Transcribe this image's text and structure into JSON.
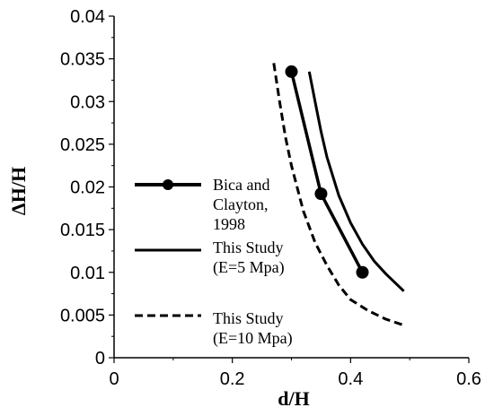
{
  "chart_data": {
    "type": "line",
    "xlabel": "d/H",
    "ylabel": "ΔH/H",
    "xlim": [
      0,
      0.6
    ],
    "ylim": [
      0,
      0.04
    ],
    "x_ticks": [
      "0",
      "0.2",
      "0.4",
      "0.6"
    ],
    "y_ticks": [
      "0",
      "0.005",
      "0.01",
      "0.015",
      "0.02",
      "0.025",
      "0.03",
      "0.035",
      "0.04"
    ],
    "grid": false,
    "legend_position": "left-inside",
    "series": [
      {
        "name_lines": [
          "Bica and",
          "Clayton,",
          "1998"
        ],
        "style": "solid-thick-markers",
        "color": "#000000",
        "points": [
          [
            0.3,
            0.0335
          ],
          [
            0.35,
            0.0192
          ],
          [
            0.42,
            0.01
          ]
        ]
      },
      {
        "name_lines": [
          "This Study",
          "(E=5 Mpa)"
        ],
        "style": "solid",
        "color": "#000000",
        "points": [
          [
            0.33,
            0.0335
          ],
          [
            0.34,
            0.03
          ],
          [
            0.35,
            0.0265
          ],
          [
            0.36,
            0.0235
          ],
          [
            0.38,
            0.019
          ],
          [
            0.4,
            0.0158
          ],
          [
            0.42,
            0.0133
          ],
          [
            0.44,
            0.0113
          ],
          [
            0.46,
            0.0098
          ],
          [
            0.49,
            0.0078
          ]
        ]
      },
      {
        "name_lines": [
          "This Study",
          "(E=10 Mpa)"
        ],
        "style": "dashed",
        "color": "#000000",
        "points": [
          [
            0.27,
            0.0345
          ],
          [
            0.28,
            0.03
          ],
          [
            0.29,
            0.0258
          ],
          [
            0.3,
            0.0225
          ],
          [
            0.32,
            0.0172
          ],
          [
            0.34,
            0.0135
          ],
          [
            0.36,
            0.0108
          ],
          [
            0.38,
            0.0085
          ],
          [
            0.4,
            0.0068
          ],
          [
            0.43,
            0.0055
          ],
          [
            0.46,
            0.0045
          ],
          [
            0.49,
            0.0038
          ]
        ]
      }
    ]
  }
}
